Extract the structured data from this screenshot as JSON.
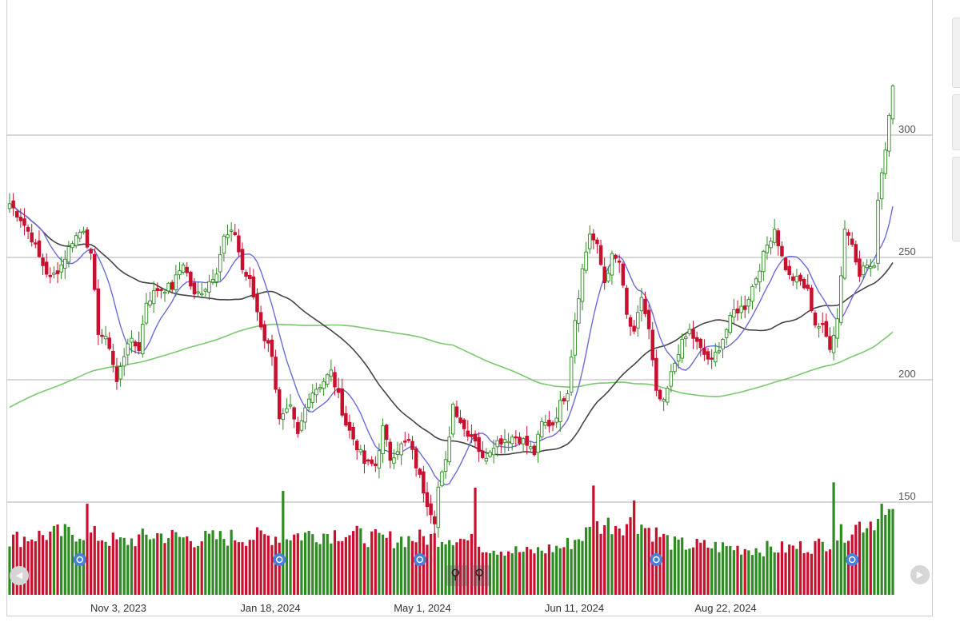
{
  "chart_data": {
    "type": "candlestick",
    "y_ticks": [
      "300",
      "250",
      "200",
      "150"
    ],
    "y_tick_values": [
      300,
      250,
      200,
      150
    ],
    "ylim": [
      112,
      332
    ],
    "x_tick_labels": [
      "Nov 3, 2023",
      "Jan 18, 2024",
      "May 1, 2024",
      "Jun 11, 2024",
      "Aug 22, 2024"
    ],
    "grid": "horizontal",
    "legend": "none",
    "colors": {
      "up": "#2e8b22",
      "down": "#c8102e",
      "ma_short": "#6b6bd8",
      "ma_mid": "#444444",
      "ma_long": "#7cc870",
      "grid": "#cccccc"
    },
    "price_path": [
      [
        0,
        272
      ],
      [
        3,
        266
      ],
      [
        6,
        258
      ],
      [
        8,
        250
      ],
      [
        11,
        241
      ],
      [
        14,
        247
      ],
      [
        17,
        257
      ],
      [
        20,
        262
      ],
      [
        22,
        250
      ],
      [
        24,
        220
      ],
      [
        27,
        214
      ],
      [
        29,
        199
      ],
      [
        32,
        216
      ],
      [
        35,
        213
      ],
      [
        37,
        232
      ],
      [
        40,
        237
      ],
      [
        44,
        238
      ],
      [
        47,
        248
      ],
      [
        50,
        234
      ],
      [
        53,
        238
      ],
      [
        56,
        245
      ],
      [
        58,
        258
      ],
      [
        61,
        260
      ],
      [
        63,
        245
      ],
      [
        65,
        240
      ],
      [
        67,
        228
      ],
      [
        69,
        217
      ],
      [
        71,
        211
      ],
      [
        73,
        183
      ],
      [
        76,
        188
      ],
      [
        78,
        177
      ],
      [
        81,
        194
      ],
      [
        84,
        198
      ],
      [
        87,
        203
      ],
      [
        89,
        193
      ],
      [
        91,
        182
      ],
      [
        94,
        173
      ],
      [
        96,
        166
      ],
      [
        99,
        165
      ],
      [
        101,
        180
      ],
      [
        103,
        168
      ],
      [
        105,
        172
      ],
      [
        108,
        175
      ],
      [
        110,
        165
      ],
      [
        113,
        150
      ],
      [
        115,
        143
      ],
      [
        116,
        156
      ],
      [
        118,
        166
      ],
      [
        120,
        190
      ],
      [
        123,
        180
      ],
      [
        126,
        176
      ],
      [
        128,
        167
      ],
      [
        131,
        174
      ],
      [
        134,
        176
      ],
      [
        137,
        177
      ],
      [
        139,
        175
      ],
      [
        142,
        170
      ],
      [
        144,
        182
      ],
      [
        147,
        182
      ],
      [
        149,
        190
      ],
      [
        151,
        196
      ],
      [
        153,
        225
      ],
      [
        155,
        245
      ],
      [
        157,
        260
      ],
      [
        159,
        254
      ],
      [
        161,
        240
      ],
      [
        163,
        250
      ],
      [
        165,
        248
      ],
      [
        167,
        226
      ],
      [
        169,
        218
      ],
      [
        171,
        234
      ],
      [
        173,
        220
      ],
      [
        175,
        194
      ],
      [
        177,
        190
      ],
      [
        179,
        202
      ],
      [
        181,
        212
      ],
      [
        184,
        220
      ],
      [
        187,
        212
      ],
      [
        190,
        207
      ],
      [
        193,
        217
      ],
      [
        196,
        228
      ],
      [
        199,
        230
      ],
      [
        202,
        242
      ],
      [
        205,
        255
      ],
      [
        207,
        262
      ],
      [
        209,
        250
      ],
      [
        211,
        242
      ],
      [
        214,
        240
      ],
      [
        216,
        236
      ],
      [
        218,
        223
      ],
      [
        220,
        221
      ],
      [
        222,
        214
      ],
      [
        224,
        225
      ],
      [
        226,
        262
      ],
      [
        228,
        256
      ],
      [
        230,
        244
      ],
      [
        232,
        247
      ],
      [
        234,
        245
      ],
      [
        235,
        275
      ],
      [
        237,
        295
      ],
      [
        239,
        322
      ]
    ],
    "volume_path": [
      [
        0,
        0.55
      ],
      [
        10,
        0.6
      ],
      [
        20,
        0.62
      ],
      [
        30,
        0.52
      ],
      [
        40,
        0.6
      ],
      [
        50,
        0.55
      ],
      [
        60,
        0.57
      ],
      [
        70,
        0.58
      ],
      [
        80,
        0.6
      ],
      [
        90,
        0.62
      ],
      [
        100,
        0.55
      ],
      [
        110,
        0.56
      ],
      [
        120,
        0.58
      ],
      [
        130,
        0.47
      ],
      [
        140,
        0.42
      ],
      [
        150,
        0.48
      ],
      [
        160,
        0.7
      ],
      [
        170,
        0.72
      ],
      [
        180,
        0.5
      ],
      [
        190,
        0.48
      ],
      [
        200,
        0.46
      ],
      [
        210,
        0.46
      ],
      [
        220,
        0.5
      ],
      [
        230,
        0.7
      ],
      [
        239,
        0.8
      ]
    ],
    "volume_spikes": {
      "21": 0.85,
      "74": 0.97,
      "126": 1.0,
      "158": 1.02,
      "169": 0.88,
      "223": 1.05,
      "236": 0.85,
      "238": 0.8
    },
    "events": [
      {
        "x": 19,
        "letter": "D"
      },
      {
        "x": 73,
        "letter": "D"
      },
      {
        "x": 111,
        "letter": "D"
      },
      {
        "x": 175,
        "letter": "D"
      },
      {
        "x": 228,
        "letter": "E"
      }
    ]
  }
}
